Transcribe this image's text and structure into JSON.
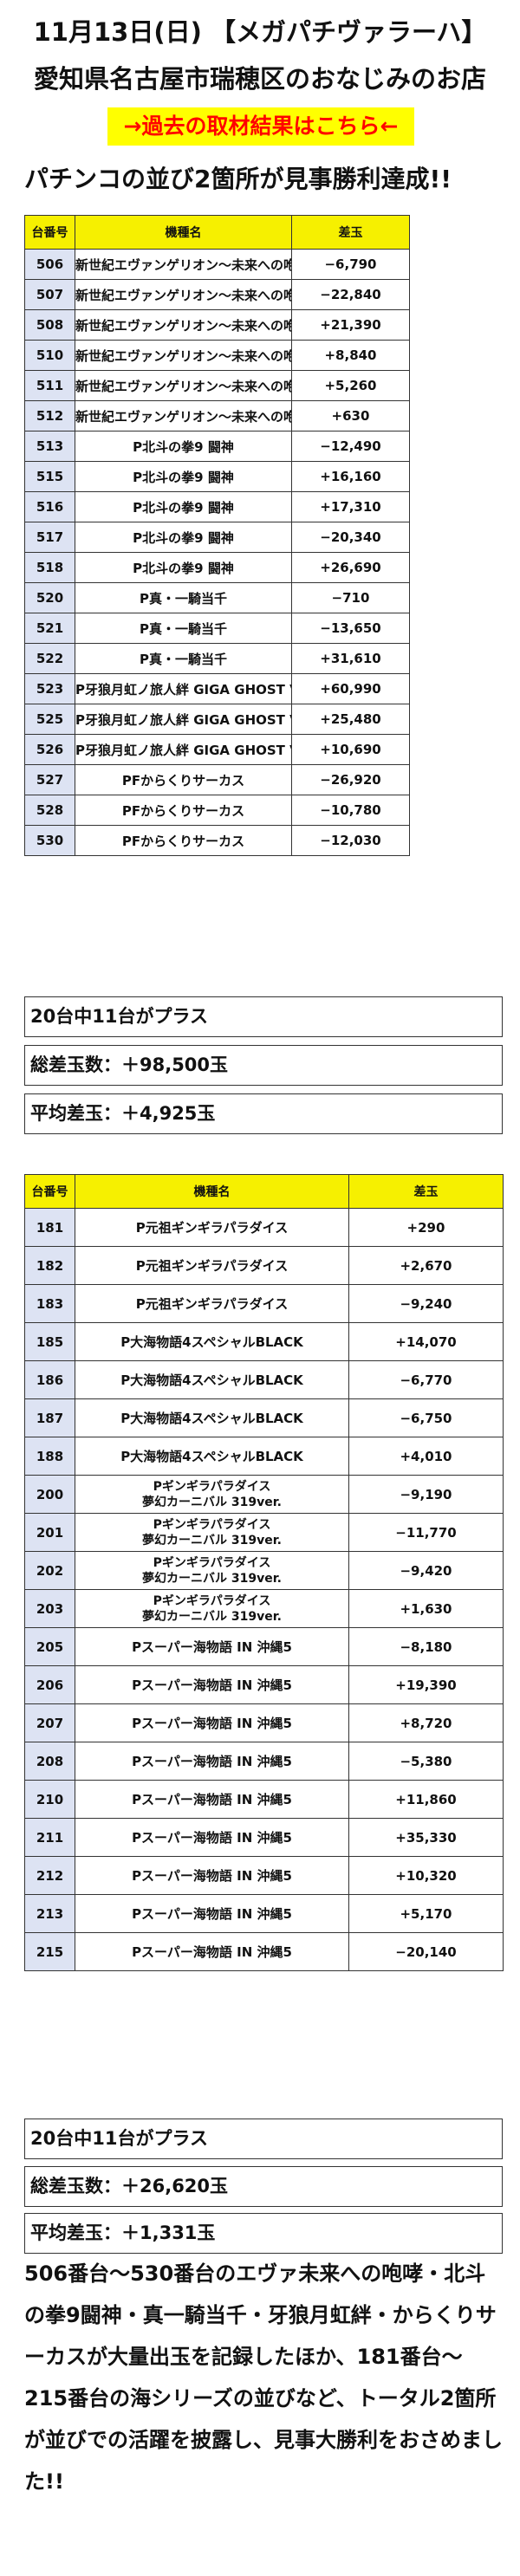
{
  "header": {
    "date_title": "11月13日(日) 【メガパチヴァラーハ】",
    "store_title": "愛知県名古屋市瑞穂区のおなじみのお店",
    "past_link_label": "→過去の取材結果はこちら←",
    "headline": "パチンコの並び2箇所が見事勝利達成!!"
  },
  "colors": {
    "header_bg": "#f6f000",
    "number_cell_bg": "#dde3f3",
    "link_bg": "#ffff00",
    "link_text": "#ff0000"
  },
  "table1": {
    "columns": [
      "台番号",
      "機種名",
      "差玉"
    ],
    "rows": [
      [
        "506",
        "新世紀エヴァンゲリオン〜未来への咆哮〜",
        "−6,790"
      ],
      [
        "507",
        "新世紀エヴァンゲリオン〜未来への咆哮〜",
        "−22,840"
      ],
      [
        "508",
        "新世紀エヴァンゲリオン〜未来への咆哮〜",
        "+21,390"
      ],
      [
        "510",
        "新世紀エヴァンゲリオン〜未来への咆哮〜",
        "+8,840"
      ],
      [
        "511",
        "新世紀エヴァンゲリオン〜未来への咆哮〜",
        "+5,260"
      ],
      [
        "512",
        "新世紀エヴァンゲリオン〜未来への咆哮〜",
        "+630"
      ],
      [
        "513",
        "P北斗の拳9 闘神",
        "−12,490"
      ],
      [
        "515",
        "P北斗の拳9 闘神",
        "+16,160"
      ],
      [
        "516",
        "P北斗の拳9 闘神",
        "+17,310"
      ],
      [
        "517",
        "P北斗の拳9 闘神",
        "−20,340"
      ],
      [
        "518",
        "P北斗の拳9 闘神",
        "+26,690"
      ],
      [
        "520",
        "P真・一騎当千",
        "−710"
      ],
      [
        "521",
        "P真・一騎当千",
        "−13,650"
      ],
      [
        "522",
        "P真・一騎当千",
        "+31,610"
      ],
      [
        "523",
        "P牙狼月虹ノ旅人絆 GIGA GHOST Ver.",
        "+60,990"
      ],
      [
        "525",
        "P牙狼月虹ノ旅人絆 GIGA GHOST Ver.",
        "+25,480"
      ],
      [
        "526",
        "P牙狼月虹ノ旅人絆 GIGA GHOST Ver.",
        "+10,690"
      ],
      [
        "527",
        "PFからくりサーカス",
        "−26,920"
      ],
      [
        "528",
        "PFからくりサーカス",
        "−10,780"
      ],
      [
        "530",
        "PFからくりサーカス",
        "−12,030"
      ]
    ],
    "summary": [
      "20台中11台がプラス",
      "総差玉数：＋98,500玉",
      "平均差玉：＋4,925玉"
    ]
  },
  "table2": {
    "columns": [
      "台番号",
      "機種名",
      "差玉"
    ],
    "rows": [
      [
        "181",
        "P元祖ギンギラパラダイス",
        "",
        "+290"
      ],
      [
        "182",
        "P元祖ギンギラパラダイス",
        "",
        "+2,670"
      ],
      [
        "183",
        "P元祖ギンギラパラダイス",
        "",
        "−9,240"
      ],
      [
        "185",
        "P大海物語4スペシャルBLACK",
        "",
        "+14,070"
      ],
      [
        "186",
        "P大海物語4スペシャルBLACK",
        "",
        "−6,770"
      ],
      [
        "187",
        "P大海物語4スペシャルBLACK",
        "",
        "−6,750"
      ],
      [
        "188",
        "P大海物語4スペシャルBLACK",
        "",
        "+4,010"
      ],
      [
        "200",
        "Pギンギラパラダイス",
        "夢幻カーニバル 319ver.",
        "−9,190"
      ],
      [
        "201",
        "Pギンギラパラダイス",
        "夢幻カーニバル 319ver.",
        "−11,770"
      ],
      [
        "202",
        "Pギンギラパラダイス",
        "夢幻カーニバル 319ver.",
        "−9,420"
      ],
      [
        "203",
        "Pギンギラパラダイス",
        "夢幻カーニバル 319ver.",
        "+1,630"
      ],
      [
        "205",
        "Pスーパー海物語 IN 沖縄5",
        "",
        "−8,180"
      ],
      [
        "206",
        "Pスーパー海物語 IN 沖縄5",
        "",
        "+19,390"
      ],
      [
        "207",
        "Pスーパー海物語 IN 沖縄5",
        "",
        "+8,720"
      ],
      [
        "208",
        "Pスーパー海物語 IN 沖縄5",
        "",
        "−5,380"
      ],
      [
        "210",
        "Pスーパー海物語 IN 沖縄5",
        "",
        "+11,860"
      ],
      [
        "211",
        "Pスーパー海物語 IN 沖縄5",
        "",
        "+35,330"
      ],
      [
        "212",
        "Pスーパー海物語 IN 沖縄5",
        "",
        "+10,320"
      ],
      [
        "213",
        "Pスーパー海物語 IN 沖縄5",
        "",
        "+5,170"
      ],
      [
        "215",
        "Pスーパー海物語 IN 沖縄5",
        "",
        "−20,140"
      ]
    ],
    "summary": [
      "20台中11台がプラス",
      "総差玉数：＋26,620玉",
      "平均差玉：＋1,331玉"
    ]
  },
  "closing_text": "506番台〜530番台のエヴァ未来への咆哮・北斗の拳9闘神・真一騎当千・牙狼月虹絆・からくりサーカスが大量出玉を記録したほか、181番台〜215番台の海シリーズの並びなど、トータル2箇所が並びでの活躍を披露し、見事大勝利をおさめました!!"
}
